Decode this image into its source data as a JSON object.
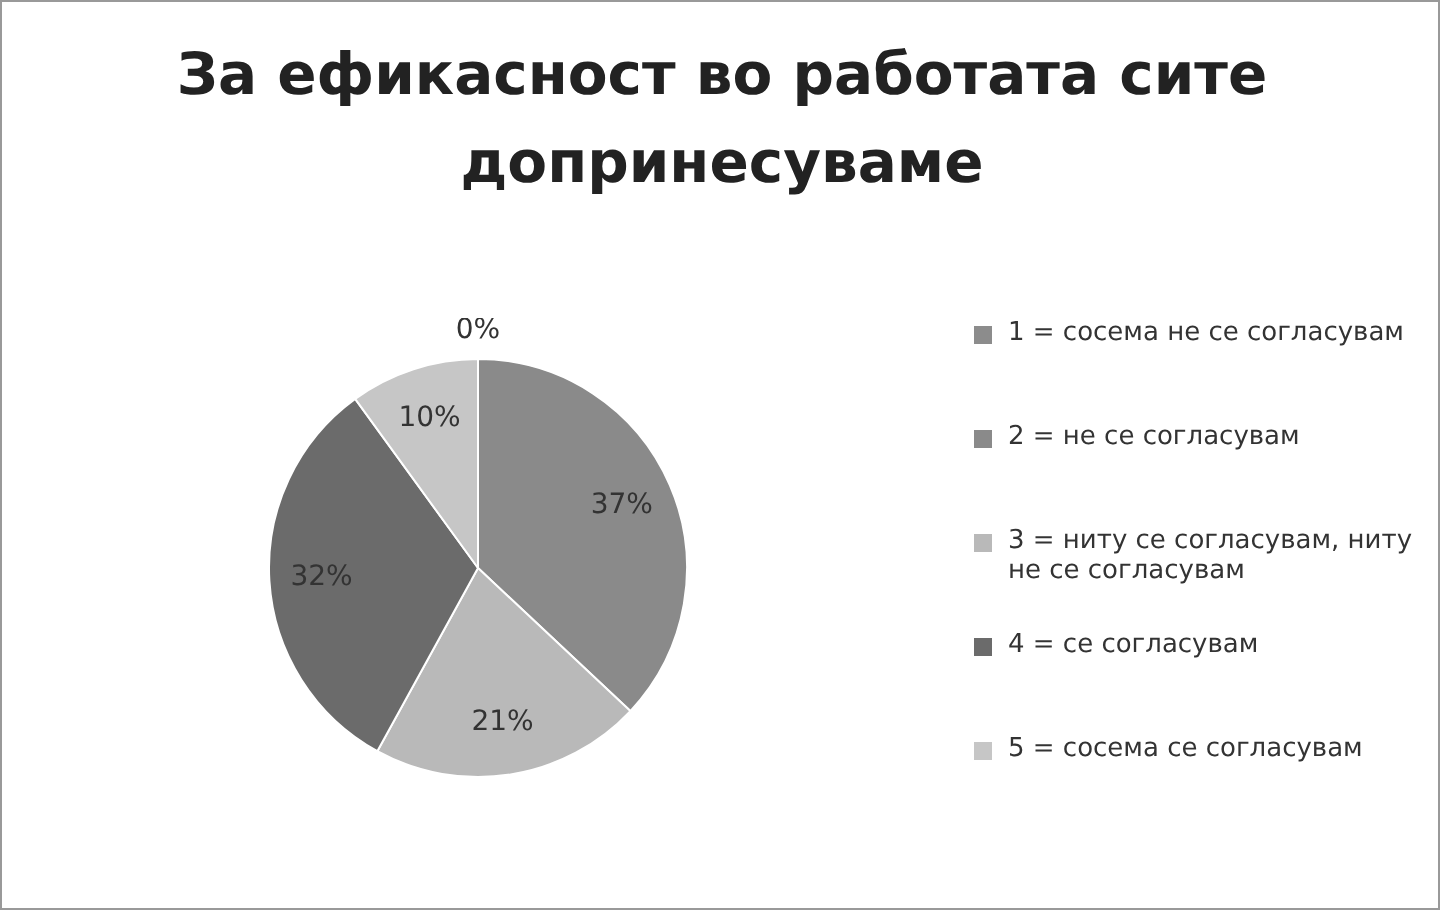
{
  "chart_data": {
    "type": "pie",
    "title": "За ефикасност во работата сите допринесуваме",
    "categories": [
      "1 = сосема не се согласувам",
      "2 = не се согласувам",
      "3 = ниту се согласувам, ниту не се согласувам",
      "4 = се согласувам",
      "5 = сосема се согласувам"
    ],
    "values": [
      0,
      37,
      21,
      32,
      10
    ],
    "colors": [
      "#8c8c8c",
      "#8a8a8a",
      "#b9b9b9",
      "#6b6b6b",
      "#c6c6c6"
    ],
    "value_labels": [
      "0%",
      "37%",
      "21%",
      "32%",
      "10%"
    ],
    "legend": "right"
  }
}
